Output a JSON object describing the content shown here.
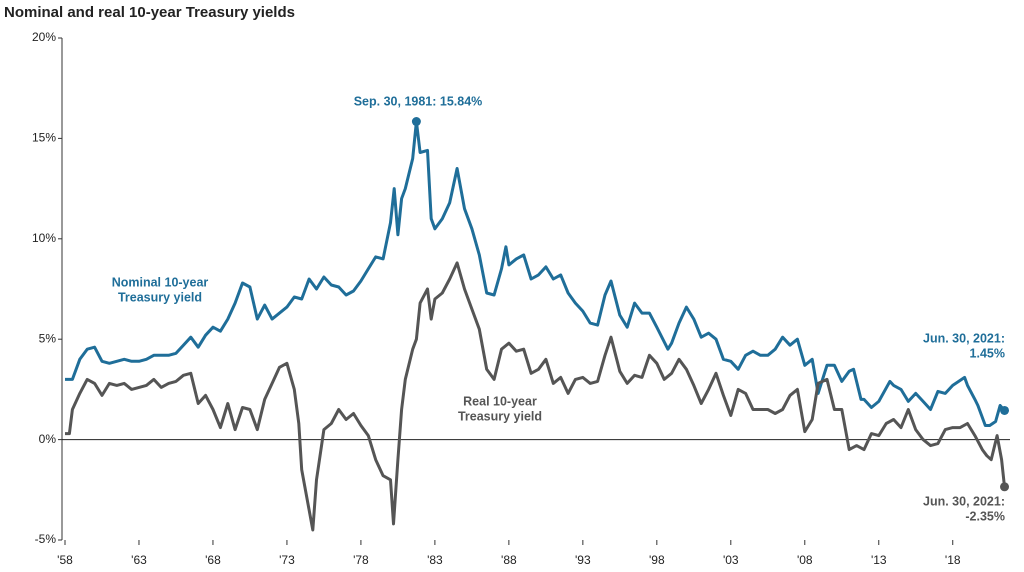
{
  "chart_data": {
    "type": "line",
    "title": "Nominal and real 10-year Treasury yields",
    "xlim": [
      1958,
      2021.6
    ],
    "xticks": [
      {
        "value": 1958,
        "label": "'58"
      },
      {
        "value": 1963,
        "label": "'63"
      },
      {
        "value": 1968,
        "label": "'68"
      },
      {
        "value": 1973,
        "label": "'73"
      },
      {
        "value": 1978,
        "label": "'78"
      },
      {
        "value": 1983,
        "label": "'83"
      },
      {
        "value": 1988,
        "label": "'88"
      },
      {
        "value": 1993,
        "label": "'93"
      },
      {
        "value": 1998,
        "label": "'98"
      },
      {
        "value": 2003,
        "label": "'03"
      },
      {
        "value": 2008,
        "label": "'08"
      },
      {
        "value": 2013,
        "label": "'13"
      },
      {
        "value": 2018,
        "label": "'18"
      }
    ],
    "ylim": [
      -5,
      20
    ],
    "yticks": [
      {
        "value": -5,
        "label": "-5%"
      },
      {
        "value": 0,
        "label": "0%"
      },
      {
        "value": 5,
        "label": "5%"
      },
      {
        "value": 10,
        "label": "10%"
      },
      {
        "value": 15,
        "label": "15%"
      },
      {
        "value": 20,
        "label": "20%"
      }
    ],
    "series": [
      {
        "name": "Nominal 10-year Treasury yield",
        "color": "#1f6e99",
        "x": [
          1958.0,
          1958.5,
          1959.0,
          1959.5,
          1960.0,
          1960.5,
          1961.0,
          1961.5,
          1962,
          1962.5,
          1963,
          1963.5,
          1964,
          1964.5,
          1965,
          1965.5,
          1966,
          1966.5,
          1967,
          1967.5,
          1968,
          1968.5,
          1969,
          1969.5,
          1970,
          1970.5,
          1971,
          1971.5,
          1972,
          1972.5,
          1973,
          1973.5,
          1974,
          1974.5,
          1975,
          1975.5,
          1976,
          1976.5,
          1977,
          1977.5,
          1978,
          1978.5,
          1979,
          1979.5,
          1980,
          1980.25,
          1980.5,
          1980.75,
          1981,
          1981.5,
          1981.75,
          1982,
          1982.5,
          1982.75,
          1983,
          1983.5,
          1984,
          1984.5,
          1985,
          1985.5,
          1986,
          1986.5,
          1987,
          1987.5,
          1987.8,
          1988,
          1988.5,
          1989,
          1989.5,
          1990,
          1990.5,
          1991,
          1991.5,
          1992,
          1992.5,
          1993,
          1993.5,
          1994,
          1994.5,
          1994.9,
          1995.5,
          1996,
          1996.5,
          1997,
          1997.5,
          1998,
          1998.75,
          1999,
          1999.5,
          2000,
          2000.5,
          2001,
          2001.5,
          2002,
          2002.5,
          2003,
          2003.5,
          2004,
          2004.5,
          2005,
          2005.5,
          2006,
          2006.5,
          2007,
          2007.5,
          2008,
          2008.5,
          2008.9,
          2009.5,
          2010,
          2010.5,
          2011,
          2011.3,
          2011.8,
          2012,
          2012.5,
          2013,
          2013.75,
          2014,
          2014.5,
          2015,
          2015.5,
          2016,
          2016.5,
          2017,
          2017.5,
          2018,
          2018.8,
          2019,
          2019.5,
          2019.7,
          2020.2,
          2020.5,
          2020.9,
          2021.2,
          2021.5
        ],
        "values": [
          3.0,
          3.0,
          4.0,
          4.5,
          4.6,
          3.9,
          3.8,
          3.9,
          4.0,
          3.9,
          3.9,
          4.0,
          4.2,
          4.2,
          4.2,
          4.3,
          4.7,
          5.1,
          4.6,
          5.2,
          5.6,
          5.4,
          6.0,
          6.8,
          7.8,
          7.6,
          6.0,
          6.7,
          6.0,
          6.3,
          6.6,
          7.1,
          7.0,
          8.0,
          7.5,
          8.1,
          7.7,
          7.6,
          7.2,
          7.4,
          7.9,
          8.5,
          9.1,
          9.0,
          10.8,
          12.5,
          10.2,
          12.0,
          12.5,
          14.0,
          15.84,
          14.3,
          14.4,
          11.0,
          10.5,
          11.0,
          11.8,
          13.5,
          11.5,
          10.5,
          9.2,
          7.3,
          7.2,
          8.5,
          9.6,
          8.7,
          9.0,
          9.2,
          8.0,
          8.2,
          8.6,
          8.0,
          8.2,
          7.3,
          6.8,
          6.4,
          5.8,
          5.7,
          7.2,
          7.9,
          6.2,
          5.6,
          6.8,
          6.3,
          6.3,
          5.6,
          4.5,
          4.8,
          5.8,
          6.6,
          6.0,
          5.1,
          5.3,
          5.0,
          4.0,
          3.9,
          3.5,
          4.2,
          4.4,
          4.2,
          4.2,
          4.5,
          5.1,
          4.7,
          5.0,
          3.7,
          4.0,
          2.3,
          3.7,
          3.7,
          2.9,
          3.4,
          3.5,
          2.0,
          2.0,
          1.6,
          1.9,
          2.9,
          2.7,
          2.5,
          1.9,
          2.3,
          1.9,
          1.5,
          2.4,
          2.3,
          2.7,
          3.1,
          2.7,
          2.0,
          1.7,
          0.7,
          0.7,
          0.9,
          1.7,
          1.45
        ]
      },
      {
        "name": "Real 10-year Treasury yield",
        "color": "#555555",
        "x": [
          1958.0,
          1958.3,
          1958.5,
          1959,
          1959.5,
          1960,
          1960.5,
          1961,
          1961.5,
          1962,
          1962.5,
          1963,
          1963.5,
          1964,
          1964.5,
          1965,
          1965.5,
          1966,
          1966.5,
          1967,
          1967.5,
          1968,
          1968.5,
          1969,
          1969.5,
          1970,
          1970.5,
          1971,
          1971.5,
          1972,
          1972.5,
          1973,
          1973.5,
          1973.8,
          1974,
          1974.5,
          1974.75,
          1975,
          1975.5,
          1976,
          1976.5,
          1977,
          1977.5,
          1978,
          1978.5,
          1979,
          1979.5,
          1980,
          1980.2,
          1980.5,
          1980.75,
          1981,
          1981.5,
          1981.75,
          1982,
          1982.5,
          1982.75,
          1983,
          1983.5,
          1984,
          1984.5,
          1985,
          1985.5,
          1986,
          1986.5,
          1987,
          1987.5,
          1988,
          1988.5,
          1989,
          1989.5,
          1990,
          1990.5,
          1991,
          1991.5,
          1992,
          1992.5,
          1993,
          1993.5,
          1994,
          1994.5,
          1994.9,
          1995.5,
          1996,
          1996.5,
          1997,
          1997.5,
          1998,
          1998.5,
          1999,
          1999.5,
          2000,
          2000.5,
          2001,
          2001.5,
          2002,
          2002.5,
          2003,
          2003.5,
          2004,
          2004.5,
          2005,
          2005.5,
          2006,
          2006.5,
          2007,
          2007.5,
          2008,
          2008.5,
          2008.9,
          2009.5,
          2010,
          2010.5,
          2011,
          2011.5,
          2012,
          2012.5,
          2013,
          2013.5,
          2014,
          2014.5,
          2015,
          2015.5,
          2016,
          2016.5,
          2017,
          2017.5,
          2018,
          2018.5,
          2019,
          2019.5,
          2020,
          2020.3,
          2020.6,
          2021,
          2021.3,
          2021.5
        ],
        "values": [
          0.3,
          0.3,
          1.5,
          2.3,
          3.0,
          2.8,
          2.2,
          2.8,
          2.7,
          2.8,
          2.5,
          2.6,
          2.7,
          3.0,
          2.6,
          2.8,
          2.9,
          3.2,
          3.3,
          1.8,
          2.2,
          1.5,
          0.6,
          1.8,
          0.5,
          1.6,
          1.5,
          0.5,
          2.0,
          2.8,
          3.6,
          3.8,
          2.5,
          0.8,
          -1.5,
          -3.5,
          -4.5,
          -2.0,
          0.5,
          0.8,
          1.5,
          1.0,
          1.3,
          0.7,
          0.2,
          -1.0,
          -1.8,
          -2.0,
          -4.2,
          -1.0,
          1.5,
          3.0,
          4.5,
          5.0,
          6.8,
          7.5,
          6.0,
          7.0,
          7.3,
          8.0,
          8.8,
          7.5,
          6.5,
          5.5,
          3.5,
          3.0,
          4.5,
          4.8,
          4.4,
          4.5,
          3.3,
          3.5,
          4.0,
          2.8,
          3.1,
          2.3,
          3.0,
          3.1,
          2.8,
          2.9,
          4.2,
          5.1,
          3.4,
          2.8,
          3.2,
          3.1,
          4.2,
          3.8,
          3.0,
          3.3,
          4.0,
          3.5,
          2.7,
          1.8,
          2.5,
          3.3,
          2.2,
          1.2,
          2.5,
          2.3,
          1.5,
          1.5,
          1.5,
          1.3,
          1.5,
          2.2,
          2.5,
          0.4,
          1.0,
          2.8,
          3.0,
          1.5,
          1.5,
          -0.5,
          -0.3,
          -0.5,
          0.3,
          0.2,
          0.8,
          1.0,
          0.6,
          1.5,
          0.5,
          0.0,
          -0.3,
          -0.2,
          0.5,
          0.6,
          0.6,
          0.8,
          0.2,
          -0.5,
          -0.8,
          -1.0,
          0.2,
          -1.0,
          -2.35
        ]
      }
    ],
    "annotations": [
      [
        "Sep. 30, 1981: 15.84%"
      ],
      [
        "Nominal 10-year",
        "Treasury yield"
      ],
      [
        "Real 10-year",
        "Treasury yield"
      ],
      [
        "Jun. 30, 2021:",
        "1.45%"
      ],
      [
        "Jun. 30, 2021:",
        "-2.35%"
      ]
    ]
  }
}
